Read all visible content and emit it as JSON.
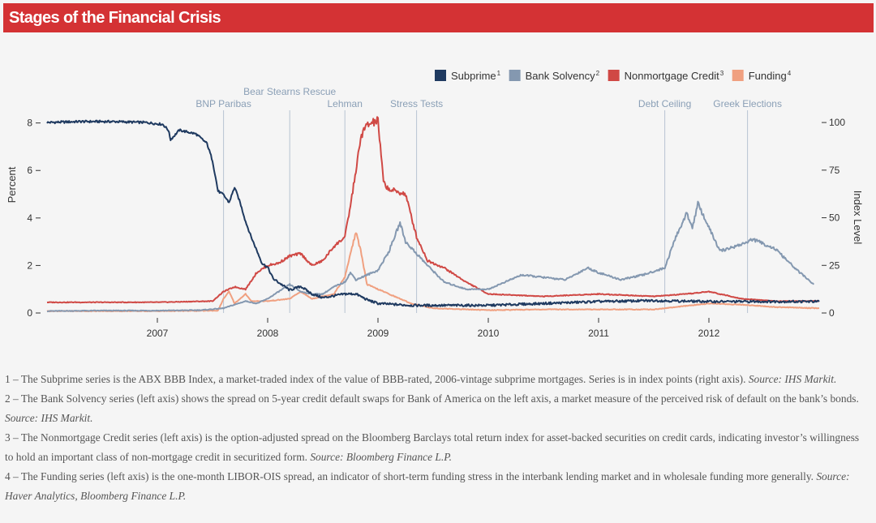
{
  "title": "Stages of the Financial Crisis",
  "chart_data": {
    "type": "line",
    "left_axis": {
      "label": "Percent",
      "ylim": [
        0,
        8.5
      ],
      "ticks": [
        0,
        2,
        4,
        6,
        8
      ]
    },
    "right_axis": {
      "label": "Index Level",
      "ylim": [
        0,
        106
      ],
      "ticks": [
        0,
        25,
        50,
        75,
        100
      ]
    },
    "x_axis": {
      "xlim": [
        2006.0,
        2013.0
      ],
      "ticks": [
        2007,
        2008,
        2009,
        2010,
        2011,
        2012
      ],
      "tick_labels": [
        "2007",
        "2008",
        "2009",
        "2010",
        "2011",
        "2012"
      ]
    },
    "legend": {
      "placement": "top-right"
    },
    "events": [
      {
        "label": "BNP Paribas",
        "x": 2007.6
      },
      {
        "label": "Bear Stearns Rescue",
        "x": 2008.2
      },
      {
        "label": "Lehman",
        "x": 2008.7
      },
      {
        "label": "Stress Tests",
        "x": 2009.35
      },
      {
        "label": "Debt Ceiling",
        "x": 2011.6
      },
      {
        "label": "Greek Elections",
        "x": 2012.35
      }
    ],
    "series": [
      {
        "name": "Subprime",
        "sup": "1",
        "axis": "right",
        "color": "#1f3a60",
        "points": [
          [
            2006.0,
            100
          ],
          [
            2006.3,
            100.5
          ],
          [
            2006.6,
            100.5
          ],
          [
            2006.9,
            100
          ],
          [
            2007.05,
            99
          ],
          [
            2007.1,
            96
          ],
          [
            2007.12,
            91
          ],
          [
            2007.2,
            96
          ],
          [
            2007.35,
            94
          ],
          [
            2007.45,
            89
          ],
          [
            2007.5,
            80
          ],
          [
            2007.55,
            64
          ],
          [
            2007.6,
            62
          ],
          [
            2007.65,
            58
          ],
          [
            2007.7,
            66
          ],
          [
            2007.75,
            58
          ],
          [
            2007.8,
            48
          ],
          [
            2007.85,
            40
          ],
          [
            2007.9,
            33
          ],
          [
            2007.95,
            26
          ],
          [
            2008.0,
            24
          ],
          [
            2008.05,
            18
          ],
          [
            2008.1,
            16
          ],
          [
            2008.2,
            12
          ],
          [
            2008.3,
            14
          ],
          [
            2008.4,
            10
          ],
          [
            2008.5,
            8
          ],
          [
            2008.6,
            9
          ],
          [
            2008.7,
            10
          ],
          [
            2008.8,
            10
          ],
          [
            2008.9,
            7
          ],
          [
            2009.0,
            5
          ],
          [
            2009.3,
            4
          ],
          [
            2009.6,
            4
          ],
          [
            2010.0,
            4
          ],
          [
            2010.5,
            5
          ],
          [
            2011.0,
            6
          ],
          [
            2011.5,
            6.5
          ],
          [
            2012.0,
            6
          ],
          [
            2012.5,
            6
          ],
          [
            2013.0,
            6
          ]
        ]
      },
      {
        "name": "Bank Solvency",
        "sup": "2",
        "axis": "left",
        "color": "#8498b0",
        "points": [
          [
            2006.0,
            0.08
          ],
          [
            2006.5,
            0.1
          ],
          [
            2007.0,
            0.1
          ],
          [
            2007.4,
            0.12
          ],
          [
            2007.6,
            0.2
          ],
          [
            2007.7,
            0.35
          ],
          [
            2007.8,
            0.5
          ],
          [
            2007.9,
            0.4
          ],
          [
            2008.0,
            0.6
          ],
          [
            2008.1,
            0.9
          ],
          [
            2008.2,
            1.2
          ],
          [
            2008.3,
            0.9
          ],
          [
            2008.4,
            0.8
          ],
          [
            2008.5,
            0.8
          ],
          [
            2008.6,
            1.1
          ],
          [
            2008.7,
            1.3
          ],
          [
            2008.75,
            1.7
          ],
          [
            2008.8,
            1.4
          ],
          [
            2008.9,
            1.6
          ],
          [
            2009.0,
            1.8
          ],
          [
            2009.1,
            2.6
          ],
          [
            2009.2,
            3.8
          ],
          [
            2009.25,
            3.0
          ],
          [
            2009.35,
            2.5
          ],
          [
            2009.45,
            2.0
          ],
          [
            2009.6,
            1.3
          ],
          [
            2009.8,
            1.0
          ],
          [
            2010.0,
            1.0
          ],
          [
            2010.3,
            1.6
          ],
          [
            2010.5,
            1.5
          ],
          [
            2010.7,
            1.4
          ],
          [
            2010.9,
            1.9
          ],
          [
            2011.0,
            1.7
          ],
          [
            2011.2,
            1.4
          ],
          [
            2011.4,
            1.6
          ],
          [
            2011.6,
            1.9
          ],
          [
            2011.7,
            3.2
          ],
          [
            2011.8,
            4.2
          ],
          [
            2011.85,
            3.6
          ],
          [
            2011.9,
            4.6
          ],
          [
            2012.0,
            3.6
          ],
          [
            2012.1,
            2.6
          ],
          [
            2012.3,
            2.9
          ],
          [
            2012.4,
            3.1
          ],
          [
            2012.6,
            2.7
          ],
          [
            2012.8,
            1.8
          ],
          [
            2012.95,
            1.2
          ]
        ]
      },
      {
        "name": "Nonmortgage Credit",
        "sup": "3",
        "axis": "left",
        "color": "#d04945",
        "points": [
          [
            2006.0,
            0.45
          ],
          [
            2006.5,
            0.45
          ],
          [
            2007.0,
            0.45
          ],
          [
            2007.5,
            0.5
          ],
          [
            2007.6,
            0.9
          ],
          [
            2007.7,
            1.1
          ],
          [
            2007.8,
            1.0
          ],
          [
            2007.9,
            1.7
          ],
          [
            2008.0,
            2.0
          ],
          [
            2008.1,
            2.1
          ],
          [
            2008.2,
            2.4
          ],
          [
            2008.3,
            2.5
          ],
          [
            2008.4,
            2.0
          ],
          [
            2008.5,
            2.2
          ],
          [
            2008.6,
            2.8
          ],
          [
            2008.7,
            3.2
          ],
          [
            2008.75,
            4.5
          ],
          [
            2008.8,
            6.0
          ],
          [
            2008.85,
            7.5
          ],
          [
            2008.9,
            7.9
          ],
          [
            2009.0,
            8.1
          ],
          [
            2009.05,
            5.5
          ],
          [
            2009.1,
            5.2
          ],
          [
            2009.25,
            5.0
          ],
          [
            2009.35,
            3.2
          ],
          [
            2009.45,
            2.2
          ],
          [
            2009.6,
            1.9
          ],
          [
            2009.8,
            1.3
          ],
          [
            2010.0,
            0.8
          ],
          [
            2010.5,
            0.7
          ],
          [
            2011.0,
            0.8
          ],
          [
            2011.5,
            0.7
          ],
          [
            2011.8,
            0.8
          ],
          [
            2012.0,
            0.9
          ],
          [
            2012.3,
            0.6
          ],
          [
            2012.6,
            0.5
          ],
          [
            2013.0,
            0.5
          ]
        ]
      },
      {
        "name": "Funding",
        "sup": "4",
        "axis": "left",
        "color": "#f0a080",
        "points": [
          [
            2006.0,
            0.08
          ],
          [
            2006.5,
            0.08
          ],
          [
            2007.0,
            0.08
          ],
          [
            2007.55,
            0.1
          ],
          [
            2007.6,
            0.6
          ],
          [
            2007.65,
            0.9
          ],
          [
            2007.7,
            0.4
          ],
          [
            2007.8,
            0.8
          ],
          [
            2007.85,
            0.5
          ],
          [
            2008.0,
            0.5
          ],
          [
            2008.2,
            0.6
          ],
          [
            2008.3,
            0.9
          ],
          [
            2008.4,
            0.6
          ],
          [
            2008.5,
            0.7
          ],
          [
            2008.6,
            0.8
          ],
          [
            2008.7,
            1.5
          ],
          [
            2008.75,
            2.5
          ],
          [
            2008.8,
            3.4
          ],
          [
            2008.85,
            2.5
          ],
          [
            2008.9,
            1.2
          ],
          [
            2009.0,
            1.0
          ],
          [
            2009.1,
            0.8
          ],
          [
            2009.3,
            0.4
          ],
          [
            2009.5,
            0.2
          ],
          [
            2010.0,
            0.12
          ],
          [
            2010.5,
            0.15
          ],
          [
            2011.0,
            0.15
          ],
          [
            2011.5,
            0.15
          ],
          [
            2012.0,
            0.4
          ],
          [
            2012.3,
            0.35
          ],
          [
            2012.6,
            0.25
          ],
          [
            2013.0,
            0.2
          ]
        ]
      }
    ]
  },
  "footnotes": [
    {
      "text": "1 – The Subprime series is the ABX BBB Index, a market-traded index of the value of BBB-rated, 2006-vintage subprime mortgages. Series is in index points (right axis). ",
      "source": "Source: IHS Markit."
    },
    {
      "text": "2 – The Bank Solvency series (left axis) shows the spread on 5-year credit default swaps for Bank of America on the left axis, a market measure of the perceived risk of default on the bank’s bonds. ",
      "source": "Source: IHS Markit."
    },
    {
      "text": "3 – The Nonmortgage Credit series (left axis) is the option-adjusted spread on the Bloomberg Barclays total return index for asset-backed securities on credit cards, indicating investor’s willingness to hold an important class of non-mortgage credit in securitized form. ",
      "source": "Source: Bloomberg Finance L.P."
    },
    {
      "text": "4 – The Funding series (left axis) is the one-month LIBOR-OIS spread, an indicator of short-term funding stress in the interbank lending market and in wholesale funding more generally. ",
      "source": "Source: Haver Analytics, Bloomberg Finance L.P."
    }
  ]
}
